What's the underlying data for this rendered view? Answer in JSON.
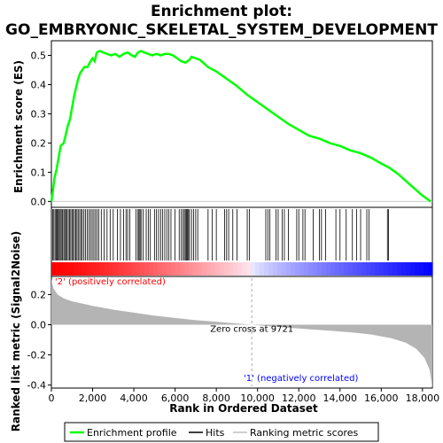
{
  "chart_data": {
    "type": "line",
    "title_line1": "Enrichment plot:",
    "title_line2": "GO_EMBRYONIC_SKELETAL_SYSTEM_DEVELOPMENT",
    "xlabel": "Rank in Ordered Dataset",
    "es_panel": {
      "ylabel": "Enrichment score (ES)",
      "ylim": [
        -0.02,
        0.55
      ],
      "yticks": [
        "0.0",
        "0.1",
        "0.2",
        "0.3",
        "0.4",
        "0.5"
      ],
      "profile_color": "#00ff00",
      "profile": [
        [
          0,
          0.0
        ],
        [
          80,
          0.04
        ],
        [
          150,
          0.08
        ],
        [
          250,
          0.11
        ],
        [
          350,
          0.15
        ],
        [
          450,
          0.19
        ],
        [
          600,
          0.2
        ],
        [
          700,
          0.23
        ],
        [
          800,
          0.26
        ],
        [
          900,
          0.28
        ],
        [
          1000,
          0.32
        ],
        [
          1100,
          0.36
        ],
        [
          1200,
          0.39
        ],
        [
          1300,
          0.42
        ],
        [
          1400,
          0.44
        ],
        [
          1500,
          0.45
        ],
        [
          1600,
          0.46
        ],
        [
          1750,
          0.46
        ],
        [
          1900,
          0.48
        ],
        [
          2000,
          0.49
        ],
        [
          2100,
          0.48
        ],
        [
          2200,
          0.51
        ],
        [
          2350,
          0.515
        ],
        [
          2500,
          0.51
        ],
        [
          2700,
          0.505
        ],
        [
          2900,
          0.5
        ],
        [
          3100,
          0.505
        ],
        [
          3300,
          0.495
        ],
        [
          3500,
          0.505
        ],
        [
          3700,
          0.51
        ],
        [
          3900,
          0.5
        ],
        [
          4050,
          0.495
        ],
        [
          4200,
          0.51
        ],
        [
          4350,
          0.515
        ],
        [
          4500,
          0.51
        ],
        [
          4700,
          0.505
        ],
        [
          4900,
          0.5
        ],
        [
          5100,
          0.505
        ],
        [
          5300,
          0.5
        ],
        [
          5500,
          0.505
        ],
        [
          5700,
          0.505
        ],
        [
          5900,
          0.5
        ],
        [
          6100,
          0.49
        ],
        [
          6300,
          0.48
        ],
        [
          6500,
          0.475
        ],
        [
          6700,
          0.485
        ],
        [
          6800,
          0.495
        ],
        [
          7000,
          0.49
        ],
        [
          7200,
          0.485
        ],
        [
          7600,
          0.46
        ],
        [
          8000,
          0.445
        ],
        [
          8500,
          0.42
        ],
        [
          9000,
          0.395
        ],
        [
          9500,
          0.365
        ],
        [
          10000,
          0.34
        ],
        [
          10500,
          0.315
        ],
        [
          11000,
          0.29
        ],
        [
          11500,
          0.265
        ],
        [
          12000,
          0.245
        ],
        [
          12500,
          0.225
        ],
        [
          13000,
          0.215
        ],
        [
          13500,
          0.2
        ],
        [
          14000,
          0.19
        ],
        [
          14500,
          0.175
        ],
        [
          15000,
          0.165
        ],
        [
          15500,
          0.15
        ],
        [
          16000,
          0.13
        ],
        [
          16400,
          0.115
        ],
        [
          16800,
          0.095
        ],
        [
          17200,
          0.07
        ],
        [
          17600,
          0.045
        ],
        [
          18000,
          0.02
        ],
        [
          18400,
          0.0
        ]
      ],
      "hit_ranks": [
        60,
        120,
        180,
        230,
        280,
        330,
        380,
        430,
        480,
        540,
        600,
        650,
        700,
        760,
        820,
        880,
        940,
        1000,
        1060,
        1120,
        1180,
        1240,
        1300,
        1370,
        1440,
        1500,
        1580,
        1660,
        1740,
        1820,
        1900,
        1980,
        2060,
        2140,
        2220,
        2300,
        2420,
        2560,
        2700,
        2850,
        3000,
        3200,
        3350,
        3500,
        3620,
        3700,
        3800,
        4100,
        4200,
        4250,
        4300,
        4350,
        4450,
        4600,
        4700,
        4800,
        5000,
        5100,
        5200,
        5300,
        5400,
        5500,
        5600,
        5700,
        5800,
        6000,
        6200,
        6300,
        6380,
        6450,
        6500,
        6550,
        6600,
        6650,
        6700,
        6800,
        6900,
        7000,
        7100,
        7600,
        7800,
        8000,
        8400,
        8500,
        8600,
        8800,
        9000,
        9500,
        9600,
        10400,
        10500,
        10600,
        10900,
        11000,
        11200,
        11300,
        11500,
        11900,
        12000,
        12200,
        12300,
        12700,
        13000,
        13100,
        13300,
        13800,
        14000,
        14300,
        14600,
        14800,
        15000,
        15300,
        15400,
        16300,
        16350
      ]
    },
    "metric_panel": {
      "ylabel": "Ranked list metric (Signal2Noise)",
      "ylim": [
        -0.42,
        0.32
      ],
      "yticks": [
        "-0.4",
        "-0.2",
        "0.0",
        "0.2"
      ],
      "metric": [
        [
          0,
          0.3
        ],
        [
          100,
          0.24
        ],
        [
          300,
          0.2
        ],
        [
          600,
          0.175
        ],
        [
          1000,
          0.155
        ],
        [
          1500,
          0.14
        ],
        [
          2000,
          0.125
        ],
        [
          3000,
          0.1
        ],
        [
          4000,
          0.08
        ],
        [
          5000,
          0.06
        ],
        [
          6000,
          0.045
        ],
        [
          7000,
          0.03
        ],
        [
          8000,
          0.02
        ],
        [
          9000,
          0.008
        ],
        [
          9721,
          0.0
        ],
        [
          10500,
          -0.01
        ],
        [
          11500,
          -0.02
        ],
        [
          12500,
          -0.03
        ],
        [
          13500,
          -0.04
        ],
        [
          14500,
          -0.05
        ],
        [
          15500,
          -0.065
        ],
        [
          16500,
          -0.09
        ],
        [
          17200,
          -0.12
        ],
        [
          17700,
          -0.16
        ],
        [
          18100,
          -0.22
        ],
        [
          18350,
          -0.3
        ],
        [
          18480,
          -0.42
        ]
      ],
      "zero_cross_label": "Zero cross at 9721",
      "zero_cross": 9721,
      "pos_label": "'2' (positively correlated)",
      "neg_label": "'1' (negatively correlated)",
      "pos_color": "#ff0000",
      "neg_color": "#0000ff"
    },
    "x_range": [
      0,
      18480
    ],
    "xticks": [
      "0",
      "2,000",
      "4,000",
      "6,000",
      "8,000",
      "10,000",
      "12,000",
      "14,000",
      "16,000",
      "18,000"
    ],
    "legend": {
      "entries": [
        "Enrichment profile",
        "Hits",
        "Ranking metric scores"
      ],
      "placement": "bottom"
    }
  }
}
